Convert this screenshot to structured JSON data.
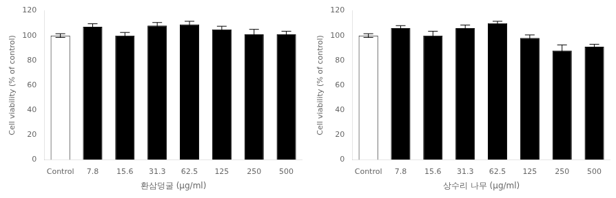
{
  "chart_data": [
    {
      "type": "bar",
      "xlabel": "환삼덩굴 (μg/ml)",
      "ylabel": "Cell viability (% of control)",
      "categories": [
        "Control",
        "7.8",
        "15.6",
        "31.3",
        "62.5",
        "125",
        "250",
        "500"
      ],
      "values": [
        100,
        107,
        100,
        108,
        109,
        105,
        101,
        101
      ],
      "errors": [
        1.5,
        2.5,
        2.5,
        2.5,
        2.5,
        2.5,
        4.0,
        2.5
      ],
      "colors": [
        "white",
        "black",
        "black",
        "black",
        "black",
        "black",
        "black",
        "black"
      ],
      "ylim": [
        0,
        120
      ],
      "yticks": [
        0,
        20,
        40,
        60,
        80,
        100,
        120
      ],
      "grid": false
    },
    {
      "type": "bar",
      "xlabel": "상수리 나무 (μg/ml)",
      "ylabel": "Cell viability (% of control)",
      "categories": [
        "Control",
        "7.8",
        "15.6",
        "31.3",
        "62.5",
        "125",
        "250",
        "500"
      ],
      "values": [
        100,
        106,
        100,
        106,
        110,
        98,
        88,
        91
      ],
      "errors": [
        1.5,
        2.0,
        3.5,
        2.5,
        1.5,
        2.5,
        4.5,
        2.0
      ],
      "colors": [
        "white",
        "black",
        "black",
        "black",
        "black",
        "black",
        "black",
        "black"
      ],
      "ylim": [
        0,
        120
      ],
      "yticks": [
        0,
        20,
        40,
        60,
        80,
        100,
        120
      ],
      "grid": false
    }
  ]
}
